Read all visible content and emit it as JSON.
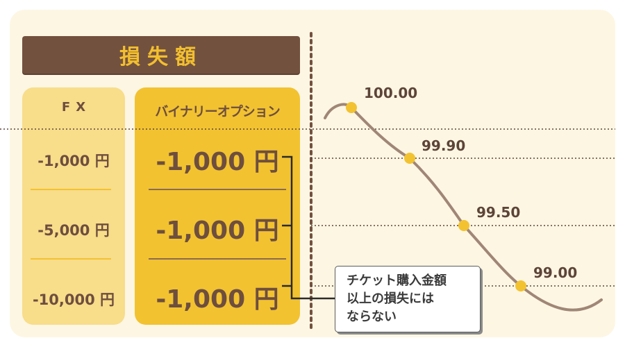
{
  "title": "損失額",
  "fx": {
    "header": "FX",
    "values": [
      "-1,000 円",
      "-5,000 円",
      "-10,000 円"
    ]
  },
  "binary": {
    "header": "バイナリーオプション",
    "values": [
      "-1,000 円",
      "-1,000 円",
      "-1,000 円"
    ]
  },
  "price_points": [
    {
      "label": "100.00",
      "value": 100.0
    },
    {
      "label": "99.90",
      "value": 99.9
    },
    {
      "label": "99.50",
      "value": 99.5
    },
    {
      "label": "99.00",
      "value": 99.0
    }
  ],
  "callout": {
    "lines": [
      "チケット購入金額",
      "以上の損失には",
      "ならない"
    ]
  },
  "colors": {
    "brown": "#73513f",
    "gold": "#f2c230",
    "light_gold": "#f8dd8a",
    "curve": "#a08677",
    "background": "#fdf6e3"
  }
}
